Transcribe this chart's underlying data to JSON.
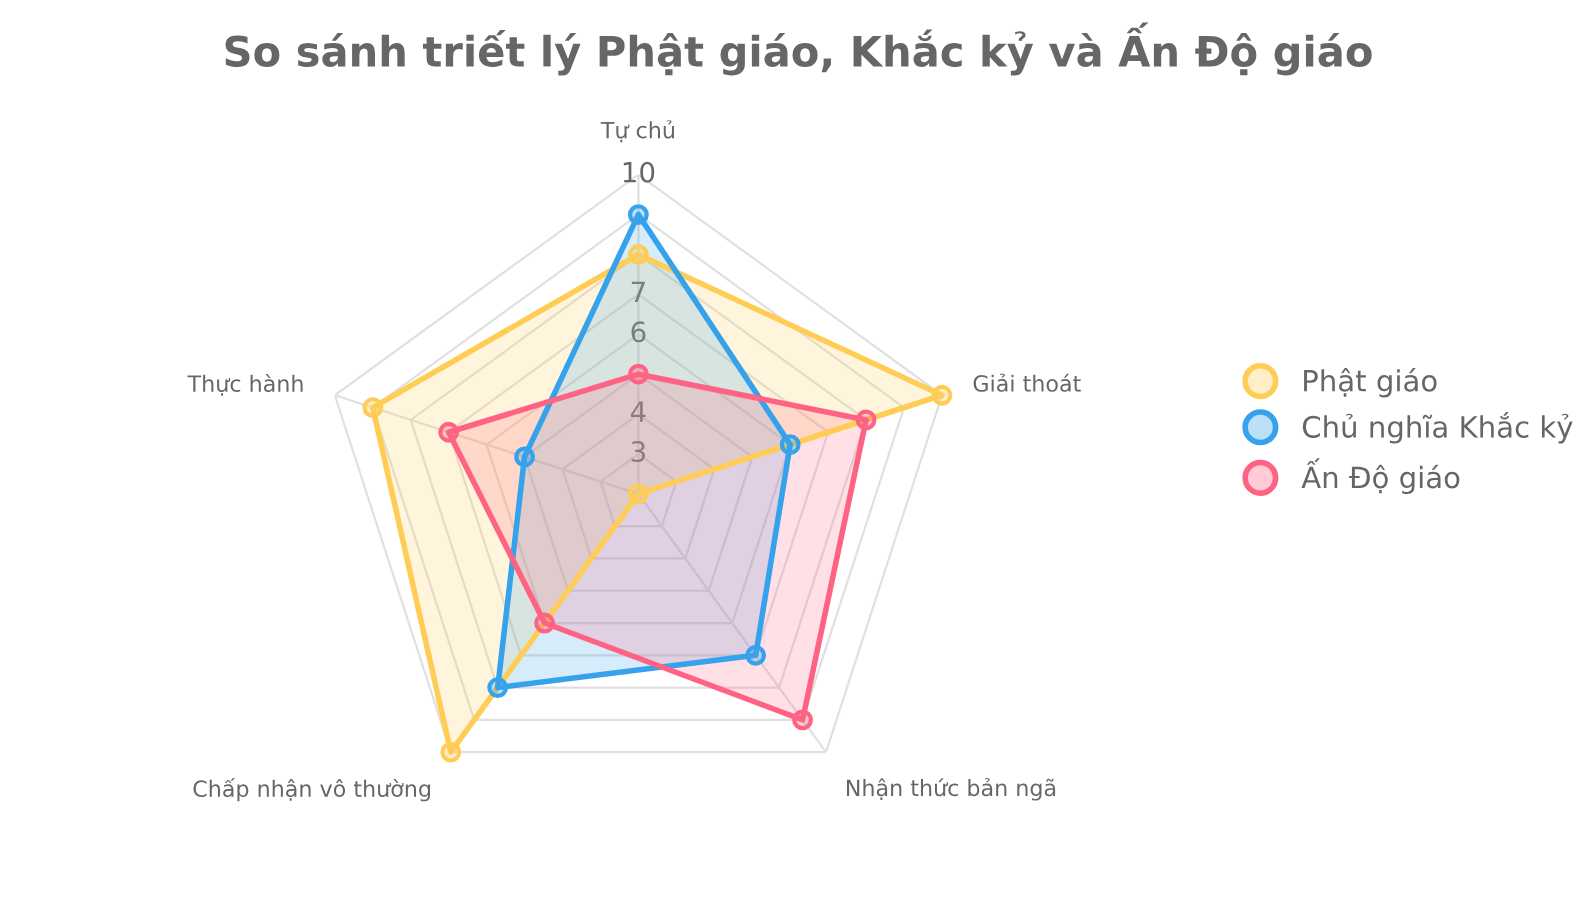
{
  "chart_data": {
    "type": "radar",
    "title": "So sánh triết lý Phật giáo, Khắc kỷ và Ấn Độ giáo",
    "categories": [
      "Tự chủ",
      "Giải thoát",
      "Nhận thức bản ngã",
      "Chấp nhận vô thường",
      "Thực hành"
    ],
    "series": [
      {
        "name": "Phật giáo",
        "color": "#ffcd56",
        "values": [
          8,
          10,
          2,
          10,
          9
        ]
      },
      {
        "name": "Chủ nghĩa Khắc kỷ",
        "color": "#36a2eb",
        "values": [
          9,
          6,
          7,
          8,
          5
        ]
      },
      {
        "name": "Ấn Độ giáo",
        "color": "#ff6384",
        "values": [
          5,
          8,
          9,
          6,
          7
        ]
      }
    ],
    "ylim": [
      2,
      10
    ],
    "yticks": [
      3,
      4,
      6,
      7,
      10
    ],
    "grid": true,
    "legend": "right",
    "marker": "circle",
    "line_style": "solid"
  }
}
